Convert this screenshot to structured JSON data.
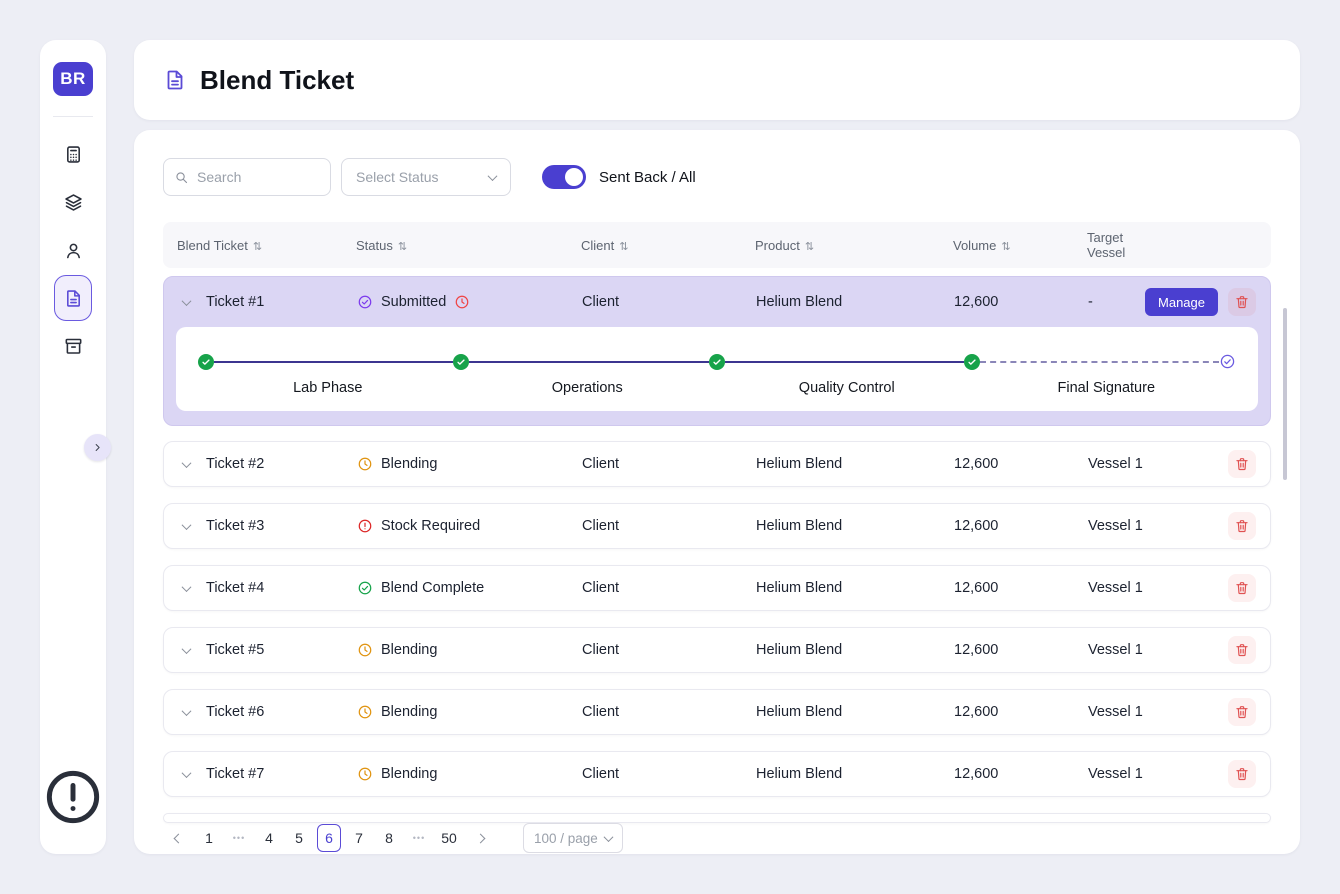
{
  "app": {
    "logo_text": "BR"
  },
  "sidebar": {
    "items": [
      {
        "name": "calculator",
        "active": false
      },
      {
        "name": "layers",
        "active": false
      },
      {
        "name": "user",
        "active": false
      },
      {
        "name": "blend-ticket",
        "active": true
      },
      {
        "name": "vessel-archive",
        "active": false
      }
    ],
    "footer_icon": "alert-circle"
  },
  "header": {
    "title": "Blend Ticket",
    "icon": "file-text"
  },
  "filters": {
    "search": {
      "placeholder": "Search",
      "icon": "search"
    },
    "status_select": {
      "placeholder": "Select Status"
    },
    "toggle": {
      "label": "Sent Back / All",
      "on": true
    }
  },
  "table": {
    "columns": [
      {
        "label": "Blend Ticket",
        "sortable": true
      },
      {
        "label": "Status",
        "sortable": true
      },
      {
        "label": "Client",
        "sortable": true
      },
      {
        "label": "Product",
        "sortable": true
      },
      {
        "label": "Volume",
        "sortable": true
      },
      {
        "label": "Target Vessel",
        "sortable": false
      }
    ],
    "expanded_row": {
      "ticket": "Ticket #1",
      "status": "Submitted",
      "status_type": "submitted",
      "status_icon": "check-circle",
      "timer_icon": "clock",
      "client": "Client",
      "product": "Helium Blend",
      "volume": "12,600",
      "vessel": "-",
      "manage_label": "Manage",
      "steps": [
        {
          "label": "Lab Phase",
          "state": "complete"
        },
        {
          "label": "Operations",
          "state": "complete"
        },
        {
          "label": "Quality Control",
          "state": "complete"
        },
        {
          "label": "Final Signature",
          "state": "pending"
        }
      ]
    },
    "rows": [
      {
        "ticket": "Ticket #2",
        "status": "Blending",
        "status_type": "blending",
        "status_icon": "clock",
        "client": "Client",
        "product": "Helium Blend",
        "volume": "12,600",
        "vessel": "Vessel 1"
      },
      {
        "ticket": "Ticket #3",
        "status": "Stock Required",
        "status_type": "stock-required",
        "status_icon": "alert-circle",
        "client": "Client",
        "product": "Helium Blend",
        "volume": "12,600",
        "vessel": "Vessel 1"
      },
      {
        "ticket": "Ticket #4",
        "status": "Blend Complete",
        "status_type": "blend-complete",
        "status_icon": "check-circle",
        "client": "Client",
        "product": "Helium Blend",
        "volume": "12,600",
        "vessel": "Vessel 1"
      },
      {
        "ticket": "Ticket #5",
        "status": "Blending",
        "status_type": "blending",
        "status_icon": "clock",
        "client": "Client",
        "product": "Helium Blend",
        "volume": "12,600",
        "vessel": "Vessel 1"
      },
      {
        "ticket": "Ticket #6",
        "status": "Blending",
        "status_type": "blending",
        "status_icon": "clock",
        "client": "Client",
        "product": "Helium Blend",
        "volume": "12,600",
        "vessel": "Vessel 1"
      },
      {
        "ticket": "Ticket #7",
        "status": "Blending",
        "status_type": "blending",
        "status_icon": "clock",
        "client": "Client",
        "product": "Helium Blend",
        "volume": "12,600",
        "vessel": "Vessel 1"
      }
    ]
  },
  "pagination": {
    "items": [
      {
        "label": "1",
        "type": "page",
        "active": false
      },
      {
        "label": "•••",
        "type": "ellipsis",
        "active": false
      },
      {
        "label": "4",
        "type": "page",
        "active": false
      },
      {
        "label": "5",
        "type": "page",
        "active": false
      },
      {
        "label": "6",
        "type": "page",
        "active": true
      },
      {
        "label": "7",
        "type": "page",
        "active": false
      },
      {
        "label": "8",
        "type": "page",
        "active": false
      },
      {
        "label": "•••",
        "type": "ellipsis",
        "active": false
      },
      {
        "label": "50",
        "type": "page",
        "active": false
      }
    ],
    "page_size_label": "100 / page"
  }
}
